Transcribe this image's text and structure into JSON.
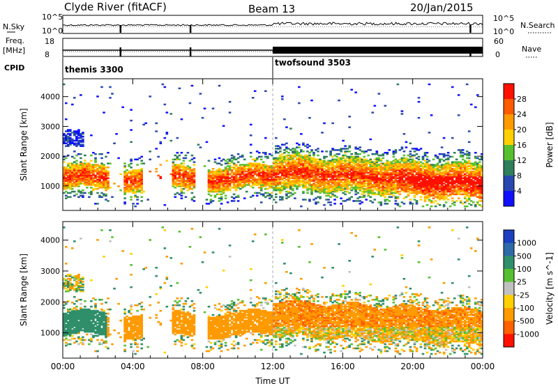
{
  "header": {
    "station": "Clyde River (fitACF)",
    "beam": "Beam 13",
    "date": "20/Jan/2015"
  },
  "strips": {
    "nsky_label": "N.Sky",
    "nsearch_label": "N.Search",
    "noise_ticks_left": [
      "10^5",
      "10^0"
    ],
    "noise_ticks_right": [
      "10^5",
      "10^0"
    ],
    "freq_label_top": "Freq.",
    "freq_label_bottom": "[MHz]",
    "freq_ticks": [
      "18",
      "8"
    ],
    "nave_label": "Nave",
    "nave_ticks": [
      "60",
      "0"
    ],
    "cpid_label": "CPID",
    "cpid_modes": [
      {
        "name": "themis 3300",
        "start_hour": 0
      },
      {
        "name": "twofsound 3503",
        "start_hour": 12
      }
    ]
  },
  "chart_data": [
    {
      "type": "heatmap",
      "title": "",
      "xlabel": "",
      "ylabel": "Slant Range [km]",
      "x_range_hours": [
        0,
        24
      ],
      "x_tick_labels": [
        "00:00",
        "04:00",
        "08:00",
        "12:00",
        "16:00",
        "20:00",
        "00:00"
      ],
      "ylim_km": [
        180,
        4600
      ],
      "y_ticks": [
        1000,
        2000,
        3000,
        4000
      ],
      "colorbar": {
        "label": "Power [dB]",
        "ticks": [
          4,
          8,
          12,
          16,
          20,
          24,
          28
        ],
        "colors": [
          "#1010ff",
          "#2848b0",
          "#2f7f5a",
          "#58c030",
          "#ffd000",
          "#ff9a00",
          "#ff5a00",
          "#ff1000"
        ]
      }
    },
    {
      "type": "heatmap",
      "title": "",
      "xlabel": "Time UT",
      "ylabel": "Slant Range [km]",
      "x_range_hours": [
        0,
        24
      ],
      "x_tick_labels": [
        "00:00",
        "04:00",
        "08:00",
        "12:00",
        "16:00",
        "20:00",
        "00:00"
      ],
      "ylim_km": [
        180,
        4600
      ],
      "y_ticks": [
        1000,
        2000,
        3000,
        4000
      ],
      "colorbar": {
        "label": "Velocity [m s^-1]",
        "ticks": [
          1000,
          500,
          100,
          25,
          -25,
          -100,
          -500,
          -1000
        ],
        "colors": [
          "#1a40c0",
          "#2f6aa8",
          "#2f8f6a",
          "#58c030",
          "#c0c0c0",
          "#ffd000",
          "#ff9a00",
          "#ff6000",
          "#ff1000"
        ]
      }
    }
  ]
}
